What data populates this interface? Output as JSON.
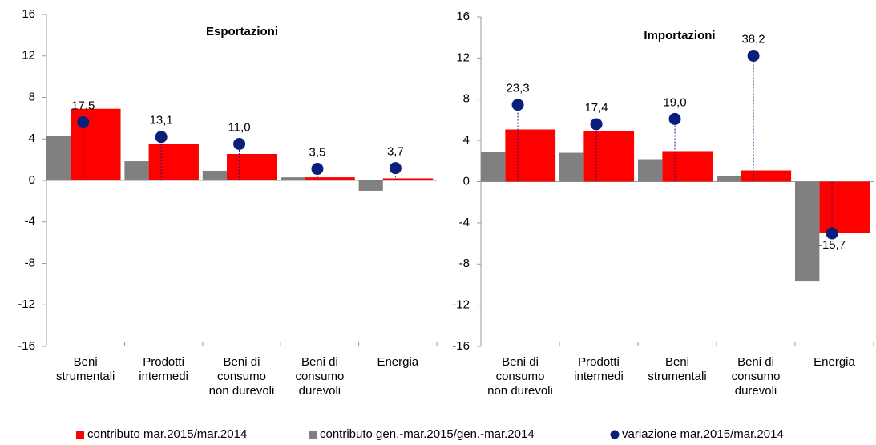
{
  "chart_data": [
    {
      "type": "bar",
      "title": "Esportazioni",
      "categories": [
        "Beni strumentali",
        "Prodotti intermedi",
        "Beni di consumo non durevoli",
        "Beni di consumo durevoli",
        "Energia"
      ],
      "series": [
        {
          "name": "contributo mar.2015/mar.2014",
          "color": "#ff0000",
          "values": [
            6.9,
            3.55,
            2.55,
            0.3,
            0.2
          ]
        },
        {
          "name": "contributo gen.-mar.2015/gen.-mar.2014",
          "color": "#808080",
          "values": [
            4.3,
            1.85,
            0.93,
            0.3,
            -1.0
          ]
        },
        {
          "name": "variazione mar.2015/mar.2014",
          "color": "#0a1f7a",
          "axis": "y2",
          "values": [
            17.5,
            13.1,
            11.0,
            3.5,
            3.7
          ],
          "value_labels": [
            "17,5",
            "13,1",
            "11,0",
            "3,5",
            "3,7"
          ]
        }
      ],
      "ylim": [
        -16,
        16
      ],
      "yticks": [
        -16,
        -12,
        -8,
        -4,
        0,
        4,
        8,
        12,
        16
      ],
      "y2lim": [
        -50,
        50
      ]
    },
    {
      "type": "bar",
      "title": "Importazioni",
      "categories": [
        "Beni di consumo non durevoli",
        "Prodotti intermedi",
        "Beni strumentali",
        "Beni di consumo durevoli",
        "Energia"
      ],
      "series": [
        {
          "color": "#ff0000",
          "values": [
            5.06,
            4.9,
            2.96,
            1.09,
            -5.0
          ]
        },
        {
          "color": "#808080",
          "values": [
            2.88,
            2.8,
            2.18,
            0.55,
            -9.7
          ]
        },
        {
          "color": "#0a1f7a",
          "axis": "y2",
          "values": [
            23.3,
            17.4,
            19.0,
            38.2,
            -15.7
          ],
          "value_labels": [
            "23,3",
            "17,4",
            "19,0",
            "38,2",
            "-15,7"
          ]
        }
      ],
      "ylim": [
        -16,
        16
      ],
      "yticks": [
        -16,
        -12,
        -8,
        -4,
        0,
        4,
        8,
        12,
        16
      ],
      "y2lim": [
        -50,
        50
      ]
    }
  ]
}
